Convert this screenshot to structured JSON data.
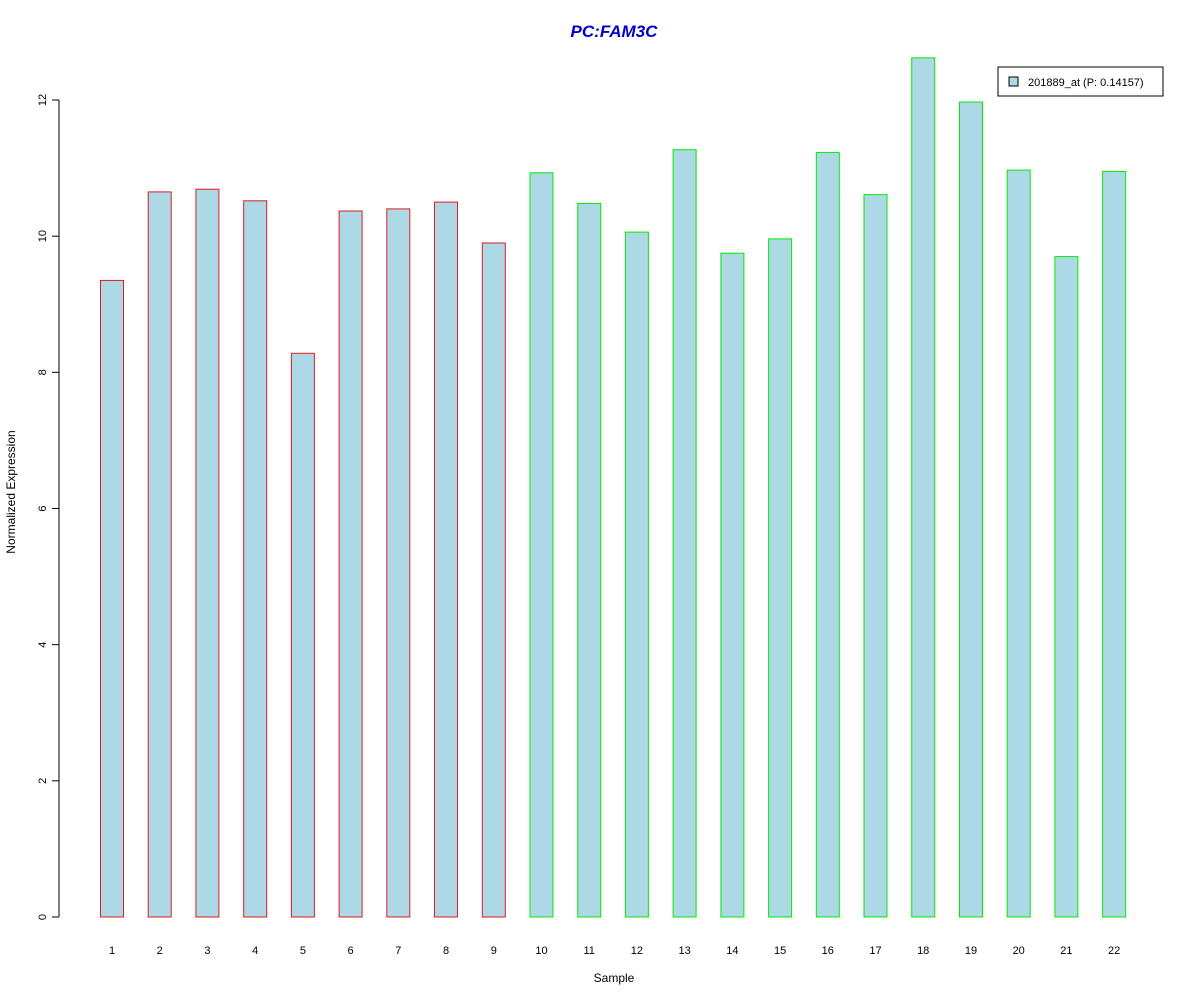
{
  "chart_data": {
    "type": "bar",
    "title": "PC:FAM3C",
    "xlabel": "Sample",
    "ylabel": "Normalized Expression",
    "ylim": [
      0,
      12
    ],
    "yticks": [
      0,
      2,
      4,
      6,
      8,
      10,
      12
    ],
    "categories": [
      "1",
      "2",
      "3",
      "4",
      "5",
      "6",
      "7",
      "8",
      "9",
      "10",
      "11",
      "12",
      "13",
      "14",
      "15",
      "16",
      "17",
      "18",
      "19",
      "20",
      "21",
      "22"
    ],
    "series": [
      {
        "name": "201889_at (P: 0.14157)",
        "values": [
          9.35,
          10.65,
          10.69,
          10.52,
          8.28,
          10.37,
          10.4,
          10.5,
          9.9,
          10.93,
          10.48,
          10.06,
          11.27,
          9.75,
          9.96,
          11.23,
          10.61,
          12.62,
          11.97,
          10.97,
          9.7,
          10.95
        ]
      }
    ],
    "groups": [
      {
        "samples": [
          "1",
          "2",
          "3",
          "4",
          "5",
          "6",
          "7",
          "8",
          "9"
        ],
        "border_color": "#e31a1c"
      },
      {
        "samples": [
          "10",
          "11",
          "12",
          "13",
          "14",
          "15",
          "16",
          "17",
          "18",
          "19",
          "20",
          "21",
          "22"
        ],
        "border_color": "#00ee00"
      }
    ],
    "bar_fill": "#add8e6",
    "title_color": "#0000cd",
    "legend_position": "top-right",
    "grid": false
  }
}
